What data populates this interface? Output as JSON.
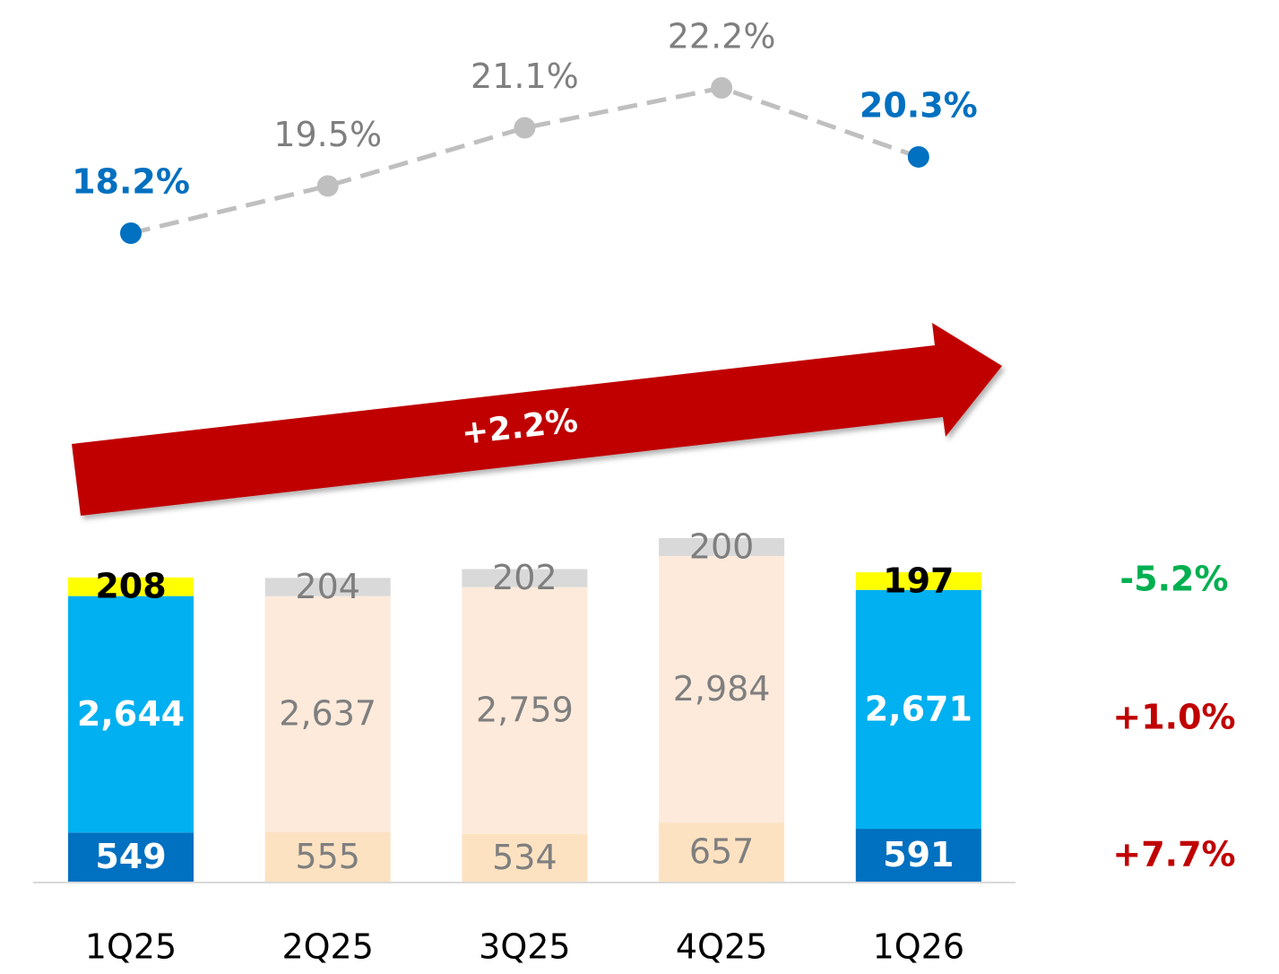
{
  "chart_data": {
    "type": "bar",
    "categories": [
      "1Q25",
      "2Q25",
      "3Q25",
      "4Q25",
      "1Q26"
    ],
    "series": [
      {
        "values": [
          549,
          555,
          534,
          657,
          591
        ],
        "value_labels": [
          "549",
          "555",
          "534",
          "657",
          "591"
        ],
        "colors": [
          "#0070c0",
          "#fde2c2",
          "#fde2c2",
          "#fde2c2",
          "#0070c0"
        ],
        "label_colors": [
          "#ffffff",
          "#7f7f7f",
          "#7f7f7f",
          "#7f7f7f",
          "#ffffff"
        ]
      },
      {
        "values": [
          2644,
          2637,
          2759,
          2984,
          2671
        ],
        "value_labels": [
          "2,644",
          "2,637",
          "2,759",
          "2,984",
          "2,671"
        ],
        "colors": [
          "#00b0f0",
          "#fdeadb",
          "#fdeadb",
          "#fdeadb",
          "#00b0f0"
        ],
        "label_colors": [
          "#ffffff",
          "#7f7f7f",
          "#7f7f7f",
          "#7f7f7f",
          "#ffffff"
        ]
      },
      {
        "values": [
          208,
          204,
          202,
          200,
          197
        ],
        "value_labels": [
          "208",
          "204",
          "202",
          "200",
          "197"
        ],
        "colors": [
          "#ffff00",
          "#d9d9d9",
          "#d9d9d9",
          "#d9d9d9",
          "#ffff00"
        ],
        "label_colors": [
          "#000000",
          "#7f7f7f",
          "#7f7f7f",
          "#7f7f7f",
          "#000000"
        ]
      }
    ],
    "line": {
      "values": [
        18.2,
        19.5,
        21.1,
        22.2,
        20.3
      ],
      "value_labels": [
        "18.2%",
        "19.5%",
        "21.1%",
        "22.2%",
        "20.3%"
      ],
      "color": "#bfbfbf",
      "colors": [
        "#0070c0",
        "#bfbfbf",
        "#bfbfbf",
        "#bfbfbf",
        "#0070c0"
      ],
      "label_colors": [
        "#0070c0",
        "#7f7f7f",
        "#7f7f7f",
        "#7f7f7f",
        "#0070c0"
      ]
    },
    "trend_label": "+2.2%",
    "trend_color": "#c00000",
    "annotations": [
      {
        "text": "-5.2%",
        "color": "#00b050"
      },
      {
        "text": "+1.0%",
        "color": "#c00000"
      },
      {
        "text": "+7.7%",
        "color": "#c00000"
      }
    ]
  }
}
